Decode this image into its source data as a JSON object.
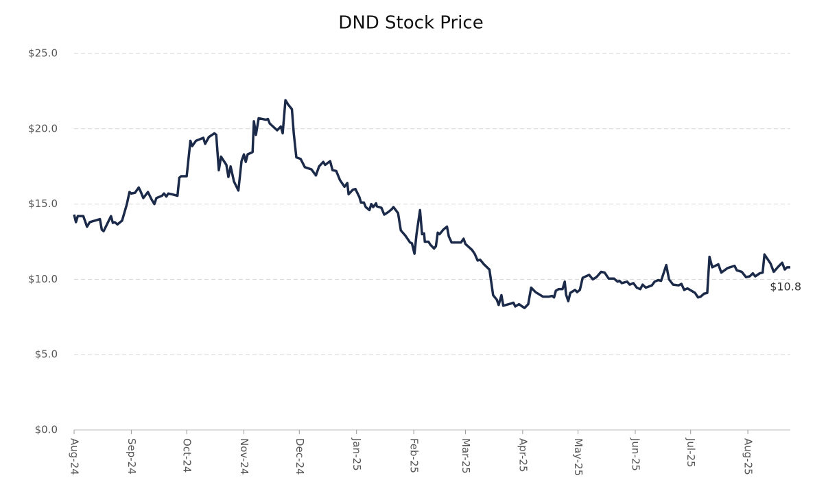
{
  "chart_data": {
    "type": "line",
    "title": "DND Stock Price",
    "xlim": [
      0,
      388
    ],
    "xticks": [
      {
        "value": 0,
        "label": "Aug-24"
      },
      {
        "value": 31,
        "label": "Sep-24"
      },
      {
        "value": 61,
        "label": "Oct-24"
      },
      {
        "value": 92,
        "label": "Nov-24"
      },
      {
        "value": 122,
        "label": "Dec-24"
      },
      {
        "value": 153,
        "label": "Jan-25"
      },
      {
        "value": 184,
        "label": "Feb-25"
      },
      {
        "value": 212,
        "label": "Mar-25"
      },
      {
        "value": 243,
        "label": "Apr-25"
      },
      {
        "value": 273,
        "label": "May-25"
      },
      {
        "value": 304,
        "label": "Jun-25"
      },
      {
        "value": 334,
        "label": "Jul-25"
      },
      {
        "value": 365,
        "label": "Aug-25"
      }
    ],
    "ylim": [
      0,
      25
    ],
    "yticks": [
      {
        "value": 0,
        "label": "$0.0"
      },
      {
        "value": 5,
        "label": "$5.0"
      },
      {
        "value": 10,
        "label": "$10.0"
      },
      {
        "value": 15,
        "label": "$15.0"
      },
      {
        "value": 20,
        "label": "$20.0"
      },
      {
        "value": 25,
        "label": "$25.0"
      }
    ],
    "grid": true,
    "series": [
      {
        "name": "DND",
        "color": "#1c2a4a",
        "x": [
          0,
          1,
          2,
          5,
          7,
          8.5,
          14,
          15,
          16,
          20,
          21,
          22,
          23.5,
          26,
          28.6,
          30,
          31,
          33,
          35,
          36,
          37.5,
          40,
          42,
          43.5,
          44.6,
          47.6,
          48.7,
          50,
          51,
          53,
          56,
          57,
          58,
          61,
          63,
          64,
          66,
          70,
          71,
          73,
          76,
          77,
          78.4,
          79.6,
          82.5,
          83.6,
          84.8,
          86.6,
          89,
          90.7,
          92,
          93,
          94,
          96.7,
          97.4,
          98.5,
          100,
          104,
          105,
          106,
          110,
          112,
          113,
          114.5,
          116,
          118,
          119,
          120.4,
          122.7,
          125,
          128.6,
          131,
          132.7,
          135,
          136,
          138.7,
          140,
          142,
          144,
          146.5,
          148,
          148.7,
          151,
          152.4,
          154.6,
          155.4,
          157,
          158,
          160,
          161,
          162,
          163.6,
          164,
          166.5,
          168,
          170,
          172,
          173,
          175.5,
          177,
          179.5,
          182,
          183,
          184.4,
          185.5,
          187.4,
          188.5,
          189.6,
          190,
          192,
          193,
          195,
          196,
          197,
          198,
          200,
          202,
          203,
          204.5,
          209.6,
          211,
          212,
          215.6,
          217,
          218.6,
          220,
          222,
          225,
          226,
          227,
          229,
          230,
          231.5,
          232.5,
          236.8,
          238,
          239,
          241,
          244,
          246,
          247.6,
          250,
          254,
          257,
          259,
          260,
          261,
          262.5,
          264.6,
          265.8,
          266.5,
          267.7,
          268.8,
          271.4,
          272.5,
          274,
          275.5,
          279,
          281,
          283,
          285.5,
          287.4,
          289.6,
          292.5,
          294.4,
          295.5,
          296.7,
          299.6,
          301,
          303,
          304.8,
          306.7,
          308,
          309.7,
          313,
          314.5,
          316.4,
          318,
          320.8,
          322.3,
          324.5,
          327.5,
          329,
          330.5,
          332.3,
          336.4,
          338,
          339.4,
          341.3,
          343,
          344.2,
          345.7,
          349,
          350.6,
          354,
          357.8,
          359,
          361.7,
          364,
          366,
          367.7,
          369,
          371.4,
          373,
          374,
          377.3,
          379,
          381.5,
          383.6,
          385,
          386.2,
          388
        ],
        "values": [
          14.3,
          13.8,
          14.2,
          14.2,
          13.5,
          13.8,
          14.0,
          13.3,
          13.2,
          14.2,
          13.75,
          13.8,
          13.65,
          13.9,
          15.0,
          15.8,
          15.7,
          15.75,
          16.1,
          15.85,
          15.4,
          15.8,
          15.3,
          15.0,
          15.4,
          15.55,
          15.7,
          15.5,
          15.7,
          15.65,
          15.55,
          16.75,
          16.85,
          16.85,
          19.2,
          18.85,
          19.2,
          19.4,
          19.0,
          19.45,
          19.7,
          19.6,
          17.25,
          18.15,
          17.6,
          16.8,
          17.5,
          16.5,
          15.9,
          17.85,
          18.3,
          17.8,
          18.3,
          18.45,
          20.5,
          19.6,
          20.7,
          20.6,
          20.65,
          20.35,
          19.9,
          20.15,
          19.7,
          21.9,
          21.6,
          21.3,
          19.7,
          18.1,
          18.0,
          17.45,
          17.3,
          16.9,
          17.5,
          17.8,
          17.6,
          17.85,
          17.25,
          17.2,
          16.6,
          16.15,
          16.4,
          15.65,
          15.95,
          16.0,
          15.45,
          15.1,
          15.1,
          14.8,
          14.6,
          15.0,
          14.8,
          15.05,
          14.85,
          14.75,
          14.3,
          14.45,
          14.65,
          14.8,
          14.4,
          13.25,
          12.9,
          12.45,
          12.4,
          11.7,
          13.0,
          14.6,
          13.0,
          13.05,
          12.5,
          12.5,
          12.3,
          12.05,
          12.2,
          13.1,
          13.0,
          13.3,
          13.5,
          12.85,
          12.45,
          12.45,
          12.7,
          12.35,
          11.95,
          11.7,
          11.25,
          11.3,
          11.0,
          10.65,
          9.8,
          8.95,
          8.65,
          8.3,
          8.95,
          8.25,
          8.4,
          8.45,
          8.2,
          8.35,
          8.1,
          8.35,
          9.45,
          9.15,
          8.85,
          8.85,
          8.9,
          8.8,
          9.25,
          9.35,
          9.35,
          9.85,
          9.0,
          8.55,
          9.1,
          9.3,
          9.15,
          9.3,
          10.1,
          10.3,
          10.0,
          10.15,
          10.5,
          10.45,
          10.05,
          10.05,
          9.85,
          9.9,
          9.75,
          9.85,
          9.65,
          9.75,
          9.45,
          9.35,
          9.65,
          9.45,
          9.6,
          9.85,
          9.95,
          9.9,
          10.95,
          10.0,
          9.65,
          9.6,
          9.7,
          9.3,
          9.4,
          9.1,
          8.8,
          8.85,
          9.05,
          9.1,
          11.5,
          10.8,
          11.0,
          10.45,
          10.75,
          10.9,
          10.6,
          10.5,
          10.15,
          10.2,
          10.4,
          10.2,
          10.4,
          10.45,
          11.65,
          11.05,
          10.5,
          10.85,
          11.1,
          10.65,
          10.8,
          10.8
        ]
      }
    ],
    "annotations": [
      {
        "x": 388,
        "y": 10.8,
        "label": "$10.8"
      }
    ]
  }
}
